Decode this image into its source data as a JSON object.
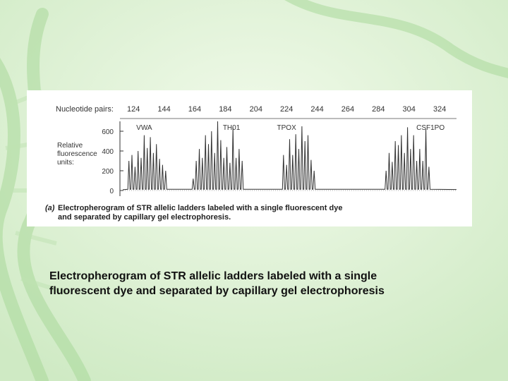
{
  "colors": {
    "slide_background": "#dff2d8",
    "helix_accent": "#b8e0a8",
    "trace": "#333333"
  },
  "slide": {
    "caption_line1": "Electropherogram of STR allelic ladders labeled with a single",
    "caption_line2": "fluorescent dye and separated by capillary gel electrophoresis"
  },
  "chart_data": {
    "type": "line",
    "title": "",
    "x_axis": {
      "label": "Nucleotide pairs:",
      "range": [
        117,
        335
      ],
      "ticks": [
        124,
        144,
        164,
        184,
        204,
        224,
        244,
        264,
        284,
        304,
        324
      ]
    },
    "y_axis": {
      "label_lines": [
        "Relative",
        "fluorescence",
        "units:"
      ],
      "range": [
        0,
        700
      ],
      "ticks": [
        0,
        200,
        400,
        600
      ]
    },
    "loci": [
      {
        "name": "VWA",
        "x": 131
      },
      {
        "name": "TH01",
        "x": 188
      },
      {
        "name": "TPOX",
        "x": 224
      },
      {
        "name": "CSF1PO",
        "x": 318
      }
    ],
    "peaks": [
      [
        121,
        300
      ],
      [
        123,
        360
      ],
      [
        125,
        240
      ],
      [
        127,
        400
      ],
      [
        129,
        330
      ],
      [
        131,
        560
      ],
      [
        133,
        430
      ],
      [
        135,
        540
      ],
      [
        137,
        380
      ],
      [
        139,
        470
      ],
      [
        141,
        320
      ],
      [
        143,
        260
      ],
      [
        145,
        200
      ],
      [
        163,
        120
      ],
      [
        165,
        300
      ],
      [
        167,
        420
      ],
      [
        169,
        330
      ],
      [
        171,
        560
      ],
      [
        173,
        470
      ],
      [
        175,
        600
      ],
      [
        177,
        380
      ],
      [
        179,
        700
      ],
      [
        181,
        510
      ],
      [
        183,
        330
      ],
      [
        185,
        440
      ],
      [
        187,
        280
      ],
      [
        189,
        640
      ],
      [
        191,
        330
      ],
      [
        193,
        420
      ],
      [
        195,
        300
      ],
      [
        222,
        360
      ],
      [
        224,
        260
      ],
      [
        226,
        520
      ],
      [
        228,
        360
      ],
      [
        230,
        570
      ],
      [
        232,
        420
      ],
      [
        234,
        650
      ],
      [
        236,
        500
      ],
      [
        238,
        560
      ],
      [
        240,
        310
      ],
      [
        242,
        200
      ],
      [
        289,
        200
      ],
      [
        291,
        380
      ],
      [
        293,
        290
      ],
      [
        295,
        500
      ],
      [
        297,
        460
      ],
      [
        299,
        560
      ],
      [
        301,
        380
      ],
      [
        303,
        640
      ],
      [
        305,
        420
      ],
      [
        307,
        560
      ],
      [
        309,
        300
      ],
      [
        311,
        420
      ],
      [
        313,
        300
      ],
      [
        315,
        620
      ],
      [
        317,
        240
      ]
    ],
    "figure_caption": {
      "label": "(a)",
      "line1": "Electropherogram of STR allelic ladders labeled with a single fluorescent dye",
      "line2": "and separated by capillary gel electrophoresis."
    },
    "grid": false,
    "legend": "none"
  }
}
